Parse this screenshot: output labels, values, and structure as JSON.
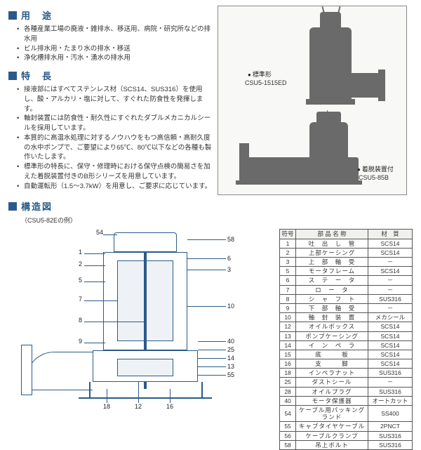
{
  "sections": {
    "uses": "用　途",
    "features": "特　長",
    "structure": "構造図"
  },
  "uses_items": [
    "各種産業工場の廃液・雑排水、移送用、病院・研究所などの排水用",
    "ビル排水用・たまり水の排水・移送",
    "浄化槽排水用・汚水・湧水の排水用"
  ],
  "features_items": [
    "接液部にはすべてステンレス材（SCS14、SUS316）を使用し、酸・アルカリ・塩に対して、すぐれた防食性を発揮します。",
    "軸封装置には防食性・耐久性にすぐれたダブルメカニカルシールを採用しています。",
    "本質的に高温水処理に対するノウハウをもつ高信頼・高耐久度の水中ポンプで、ご要望により65℃、80℃以下などの各種も製作いたします。",
    "標準形の特長に、保守・修理時における保守点検の簡易さを加えた着脱装置付きのB形シリーズを用意しています。",
    "自動運転形（1.5～3.7kW）を用意し、ご要求に応じています。"
  ],
  "image_labels": {
    "standard": "標準形",
    "standard_model": "CSU5-1515ED",
    "detach": "着脱装置付",
    "detach_model": "CSU5-85B"
  },
  "diagram_note": "（CSU5-82Eの例）",
  "callouts": [
    "54",
    "1",
    "2",
    "5",
    "7",
    "8",
    "9",
    "10",
    "40",
    "25",
    "14",
    "13",
    "55",
    "18",
    "12",
    "16",
    "58",
    "6",
    "3"
  ],
  "table": {
    "headers": [
      "符号",
      "部 品 名 称",
      "材　質"
    ],
    "rows": [
      [
        "1",
        "吐　出　し　管",
        "SCS14"
      ],
      [
        "2",
        "上部ケーシング",
        "SCS14"
      ],
      [
        "3",
        "上　部　軸　受",
        "－"
      ],
      [
        "5",
        "モータフレーム",
        "SCS14"
      ],
      [
        "6",
        "ス　テ　ー　タ",
        "－"
      ],
      [
        "7",
        "ロ　ー　タ",
        "－"
      ],
      [
        "8",
        "シ　ャ　フ　ト",
        "SUS316"
      ],
      [
        "9",
        "下　部　軸　受",
        "－"
      ],
      [
        "10",
        "軸　封　装　置",
        "メカシール"
      ],
      [
        "12",
        "オイルボックス",
        "SCS14"
      ],
      [
        "13",
        "ポンプケーシング",
        "SCS14"
      ],
      [
        "14",
        "イ　ン　ペ　ラ",
        "SCS14"
      ],
      [
        "15",
        "底　　　板",
        "SCS14"
      ],
      [
        "16",
        "支　　　脚",
        "SCS14"
      ],
      [
        "18",
        "インペラナット",
        "SUS316"
      ],
      [
        "25",
        "ダストシール",
        "－"
      ],
      [
        "28",
        "オイルプラグ",
        "SUS316"
      ],
      [
        "40",
        "モータ保護器",
        "オートカット"
      ],
      [
        "54",
        "ケーブル用パッキングランド",
        "SS400"
      ],
      [
        "55",
        "キャブタイヤケーブル",
        "2PNCT"
      ],
      [
        "56",
        "ケーブルクランプ",
        "SUS316"
      ],
      [
        "58",
        "吊上ボルト",
        "SUS316"
      ]
    ]
  }
}
